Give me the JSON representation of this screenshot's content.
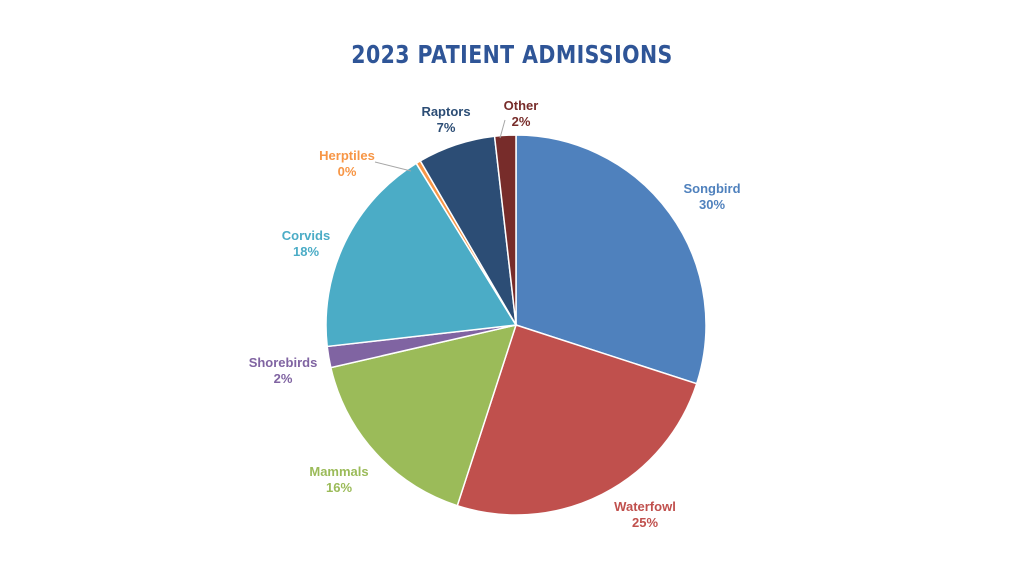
{
  "title": "2023 PATIENT ADMISSIONS",
  "chart_data": {
    "type": "pie",
    "title": "2023 PATIENT ADMISSIONS",
    "start_angle_deg": 0,
    "direction": "clockwise",
    "slices": [
      {
        "label": "Songbird",
        "pct_label": "30%",
        "value": 30.0,
        "color": "#4f81bd"
      },
      {
        "label": "Waterfowl",
        "pct_label": "25%",
        "value": 25.0,
        "color": "#c0504d"
      },
      {
        "label": "Mammals",
        "pct_label": "16%",
        "value": 16.4,
        "color": "#9bbb59"
      },
      {
        "label": "Shorebirds",
        "pct_label": "2%",
        "value": 1.8,
        "color": "#8064a2"
      },
      {
        "label": "Corvids",
        "pct_label": "18%",
        "value": 18.0,
        "color": "#4bacc6"
      },
      {
        "label": "Herptiles",
        "pct_label": "0%",
        "value": 0.4,
        "color": "#f79646"
      },
      {
        "label": "Raptors",
        "pct_label": "7%",
        "value": 6.6,
        "color": "#2c4d75"
      },
      {
        "label": "Other",
        "pct_label": "2%",
        "value": 1.8,
        "color": "#772c2a"
      }
    ]
  }
}
